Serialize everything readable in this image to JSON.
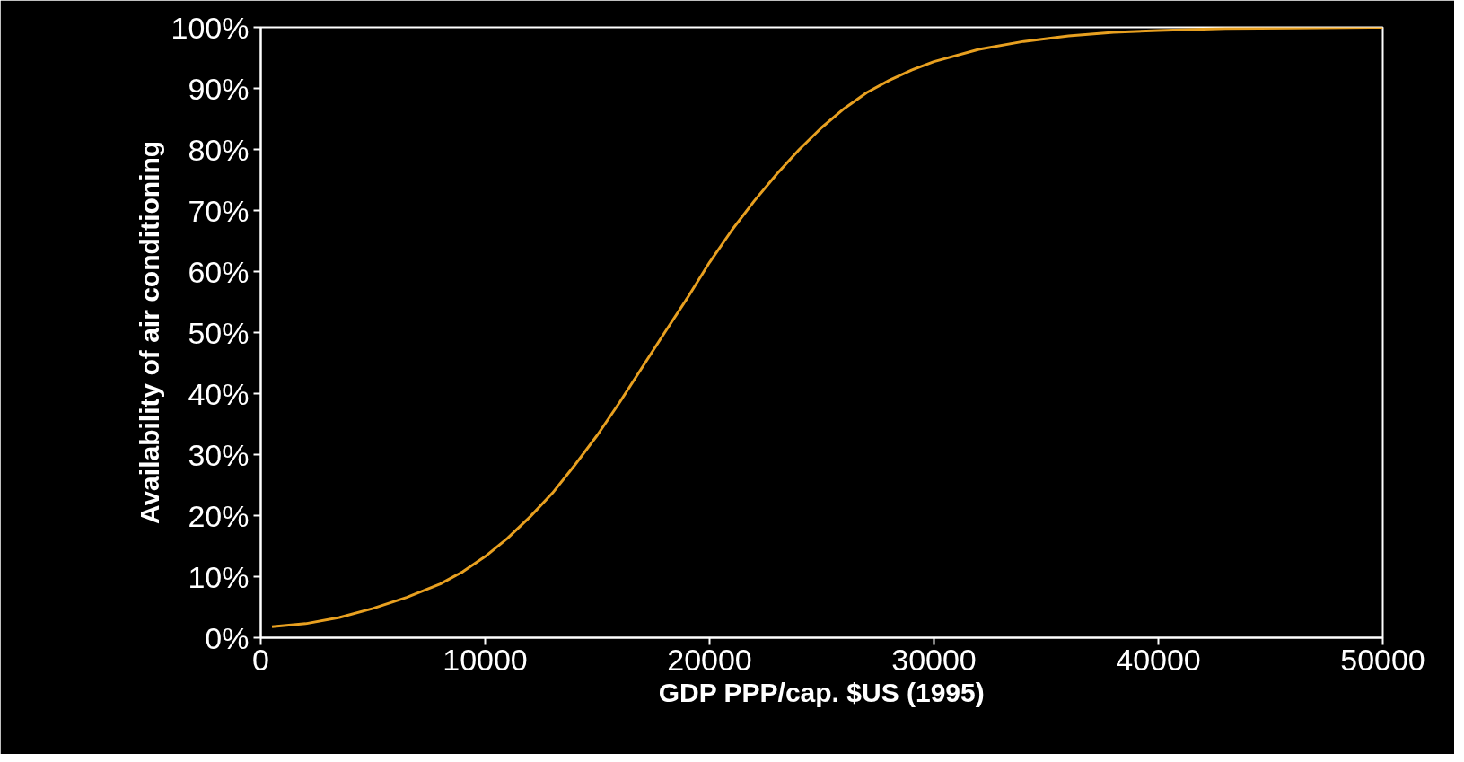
{
  "chart_data": {
    "type": "line",
    "xlabel": "GDP PPP/cap. $US (1995)",
    "ylabel": "Availability of air conditioning",
    "x": [
      500,
      2000,
      3500,
      5000,
      6500,
      8000,
      9000,
      10000,
      11000,
      12000,
      13000,
      14000,
      15000,
      16000,
      17000,
      18000,
      19000,
      20000,
      21000,
      22000,
      23000,
      24000,
      25000,
      26000,
      27000,
      28000,
      29000,
      30000,
      32000,
      34000,
      36000,
      38000,
      40000,
      43000,
      46000,
      50000
    ],
    "series": [
      {
        "color": "#e8a020",
        "values": [
          1.8,
          2.3,
          3.3,
          4.8,
          6.6,
          8.8,
          10.8,
          13.3,
          16.3,
          19.8,
          23.7,
          28.3,
          33.2,
          38.6,
          44.3,
          50.0,
          55.6,
          61.5,
          66.8,
          71.6,
          76.0,
          80.0,
          83.6,
          86.7,
          89.3,
          91.3,
          93.0,
          94.4,
          96.4,
          97.7,
          98.6,
          99.2,
          99.5,
          99.8,
          99.9,
          100
        ]
      }
    ],
    "xlim": [
      0,
      50000
    ],
    "ylim": [
      0,
      100
    ],
    "xticks": [
      0,
      10000,
      20000,
      30000,
      40000,
      50000
    ],
    "yticks": [
      {
        "value": 0,
        "label": "0%"
      },
      {
        "value": 10,
        "label": "10%"
      },
      {
        "value": 20,
        "label": "20%"
      },
      {
        "value": 30,
        "label": "30%"
      },
      {
        "value": 40,
        "label": "40%"
      },
      {
        "value": 50,
        "label": "50%"
      },
      {
        "value": 60,
        "label": "60%"
      },
      {
        "value": 70,
        "label": "70%"
      },
      {
        "value": 80,
        "label": "80%"
      },
      {
        "value": 90,
        "label": "90%"
      },
      {
        "value": 100,
        "label": "100%"
      }
    ],
    "grid": false,
    "marker": "none",
    "line_style": "solid"
  }
}
